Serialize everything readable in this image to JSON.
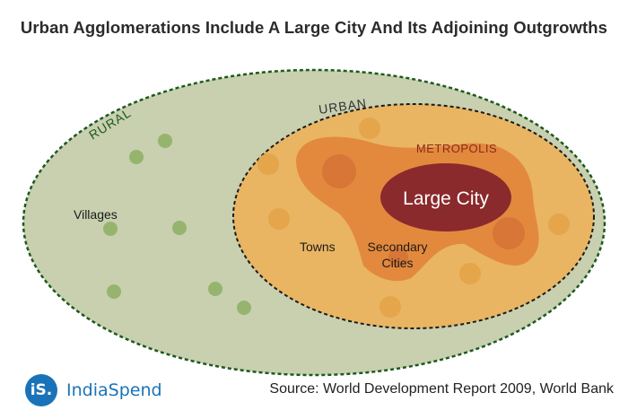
{
  "title": "Urban Agglomerations Include A Large City And Its Adjoining Outgrowths",
  "regions": {
    "rural": "RURAL",
    "urban": "URBAN",
    "metropolis": "METROPOLIS",
    "large_city": "Large City"
  },
  "labels": {
    "villages": "Villages",
    "towns": "Towns",
    "secondary_cities_line1": "Secondary",
    "secondary_cities_line2": "Cities"
  },
  "colors": {
    "rural_fill": "#c8d0b0",
    "rural_border": "#1e5a1e",
    "village_dot": "#96b46e",
    "urban_fill": "#e9b562",
    "town_dot": "#e5a54a",
    "metropolis_fill": "#e3893d",
    "secondary_city_dot": "#d77637",
    "large_city_fill": "#8a2a2c",
    "logo_blue": "#1a73b8"
  },
  "logo": {
    "badge": "iS.",
    "name": "IndiaSpend"
  },
  "source": "Source: World Development Report 2009, World Bank"
}
